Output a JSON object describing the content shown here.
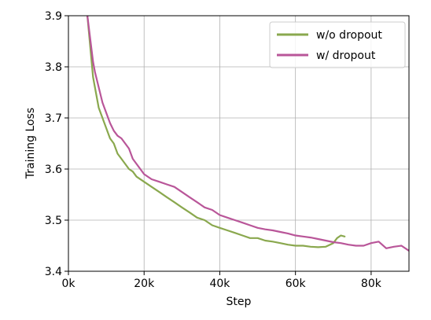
{
  "chart_data": {
    "type": "line",
    "title": "",
    "xlabel": "Step",
    "ylabel": "Training Loss",
    "xlim": [
      0,
      90000
    ],
    "ylim": [
      3.4,
      3.9
    ],
    "xticks": [
      0,
      20000,
      40000,
      60000,
      80000
    ],
    "xtick_labels": [
      "0k",
      "20k",
      "40k",
      "60k",
      "80k"
    ],
    "yticks": [
      3.4,
      3.5,
      3.6,
      3.7,
      3.8,
      3.9
    ],
    "ytick_labels": [
      "3.4",
      "3.5",
      "3.6",
      "3.7",
      "3.8",
      "3.9"
    ],
    "grid": true,
    "legend_position": "top-right",
    "series": [
      {
        "name": "w/o dropout",
        "color": "#8aa84e",
        "x": [
          5000,
          5500,
          6000,
          6500,
          7000,
          7500,
          8000,
          9000,
          10000,
          11000,
          12000,
          13000,
          14000,
          15000,
          16000,
          17000,
          18000,
          20000,
          22000,
          24000,
          26000,
          28000,
          30000,
          32000,
          34000,
          36000,
          38000,
          40000,
          42000,
          44000,
          46000,
          48000,
          50000,
          52000,
          54000,
          56000,
          58000,
          60000,
          62000,
          64000,
          66000,
          68000,
          70000,
          71000,
          72000,
          73000
        ],
        "y": [
          3.9,
          3.86,
          3.82,
          3.78,
          3.76,
          3.74,
          3.72,
          3.7,
          3.68,
          3.66,
          3.65,
          3.63,
          3.62,
          3.61,
          3.6,
          3.595,
          3.585,
          3.575,
          3.565,
          3.555,
          3.545,
          3.535,
          3.525,
          3.515,
          3.505,
          3.5,
          3.49,
          3.485,
          3.48,
          3.475,
          3.47,
          3.465,
          3.465,
          3.46,
          3.458,
          3.455,
          3.452,
          3.45,
          3.45,
          3.448,
          3.447,
          3.448,
          3.455,
          3.465,
          3.47,
          3.468
        ]
      },
      {
        "name": "w/ dropout",
        "color": "#b95699",
        "x": [
          5000,
          5500,
          6000,
          6500,
          7000,
          7500,
          8000,
          9000,
          10000,
          11000,
          12000,
          13000,
          14000,
          15000,
          16000,
          17000,
          18000,
          20000,
          22000,
          24000,
          26000,
          28000,
          30000,
          32000,
          34000,
          36000,
          38000,
          40000,
          42000,
          44000,
          46000,
          48000,
          50000,
          52000,
          54000,
          56000,
          58000,
          60000,
          62000,
          64000,
          66000,
          68000,
          70000,
          72000,
          74000,
          76000,
          78000,
          80000,
          82000,
          84000,
          86000,
          88000,
          90000
        ],
        "y": [
          3.9,
          3.87,
          3.84,
          3.81,
          3.79,
          3.775,
          3.76,
          3.73,
          3.71,
          3.69,
          3.675,
          3.665,
          3.66,
          3.65,
          3.64,
          3.62,
          3.61,
          3.59,
          3.58,
          3.575,
          3.57,
          3.565,
          3.555,
          3.545,
          3.535,
          3.525,
          3.52,
          3.51,
          3.505,
          3.5,
          3.495,
          3.49,
          3.485,
          3.482,
          3.48,
          3.477,
          3.474,
          3.47,
          3.468,
          3.466,
          3.463,
          3.46,
          3.457,
          3.455,
          3.452,
          3.45,
          3.45,
          3.455,
          3.458,
          3.445,
          3.448,
          3.45,
          3.44
        ]
      }
    ]
  }
}
